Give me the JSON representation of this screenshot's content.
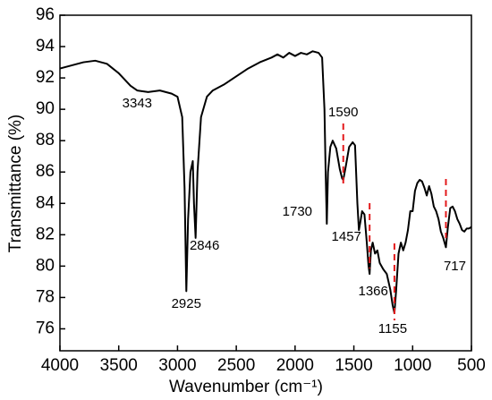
{
  "chart_data": {
    "type": "line",
    "xlabel": "Wavenumber (cm⁻¹)",
    "ylabel": "Transmittance (%)",
    "x": [
      4000,
      3900,
      3800,
      3700,
      3600,
      3500,
      3400,
      3343,
      3250,
      3150,
      3050,
      3000,
      2960,
      2940,
      2925,
      2910,
      2890,
      2870,
      2860,
      2846,
      2830,
      2800,
      2750,
      2700,
      2600,
      2500,
      2400,
      2300,
      2200,
      2150,
      2100,
      2050,
      2000,
      1950,
      1900,
      1850,
      1800,
      1770,
      1750,
      1740,
      1730,
      1720,
      1700,
      1680,
      1650,
      1620,
      1600,
      1590,
      1570,
      1540,
      1510,
      1490,
      1470,
      1457,
      1445,
      1430,
      1410,
      1390,
      1375,
      1366,
      1355,
      1340,
      1320,
      1300,
      1280,
      1250,
      1220,
      1190,
      1170,
      1155,
      1140,
      1120,
      1100,
      1080,
      1060,
      1040,
      1020,
      1000,
      980,
      960,
      940,
      920,
      900,
      880,
      860,
      840,
      820,
      800,
      780,
      760,
      740,
      717,
      700,
      680,
      660,
      640,
      620,
      600,
      580,
      560,
      540,
      520,
      500
    ],
    "series": [
      {
        "color": "#000000",
        "values": [
          92.6,
          92.8,
          93.0,
          93.1,
          92.9,
          92.3,
          91.5,
          91.2,
          91.1,
          91.2,
          91.0,
          90.8,
          89.5,
          85,
          78.4,
          83,
          86,
          86.7,
          84,
          81.8,
          86,
          89.5,
          90.8,
          91.2,
          91.6,
          92.1,
          92.6,
          93.0,
          93.3,
          93.5,
          93.3,
          93.6,
          93.4,
          93.6,
          93.5,
          93.7,
          93.6,
          93.3,
          90,
          86,
          82.7,
          86,
          87.6,
          88,
          87.5,
          86.2,
          85.6,
          85.5,
          86.3,
          87.6,
          87.9,
          87.7,
          84,
          82.3,
          82.8,
          83.5,
          83.3,
          81.5,
          80,
          79.5,
          81,
          81.5,
          80.8,
          81,
          80.2,
          79.8,
          79.5,
          78.5,
          77.5,
          77,
          78.5,
          80.8,
          81.5,
          81,
          81.5,
          82.3,
          83.5,
          83.5,
          84.8,
          85.3,
          85.5,
          85.4,
          85,
          84.5,
          85.1,
          84.6,
          83.8,
          83.5,
          83,
          82.2,
          81.8,
          81.2,
          82.5,
          83.7,
          83.8,
          83.5,
          83,
          82.7,
          82.3,
          82.2,
          82.4,
          82.4,
          82.5
        ]
      }
    ],
    "xlim": [
      4000,
      500
    ],
    "xticks": [
      4000,
      3500,
      3000,
      2500,
      2000,
      1500,
      1000,
      500
    ],
    "ylim": [
      74.6,
      96
    ],
    "yticks": [
      76,
      78,
      80,
      82,
      84,
      86,
      88,
      90,
      92,
      94,
      96
    ],
    "annotations": [
      {
        "text": "3343",
        "x": 3343,
        "dashed": false
      },
      {
        "text": "2925",
        "x": 2925,
        "dashed": false
      },
      {
        "text": "2846",
        "x": 2846,
        "dashed": false
      },
      {
        "text": "1730",
        "x": 1730,
        "dashed": false
      },
      {
        "text": "1590",
        "x": 1590,
        "dashed": true
      },
      {
        "text": "1457",
        "x": 1457,
        "dashed": false
      },
      {
        "text": "1366",
        "x": 1366,
        "dashed": true
      },
      {
        "text": "1155",
        "x": 1155,
        "dashed": true
      },
      {
        "text": "717",
        "x": 717,
        "dashed": true
      }
    ],
    "dash_color": "#e31a1c"
  }
}
